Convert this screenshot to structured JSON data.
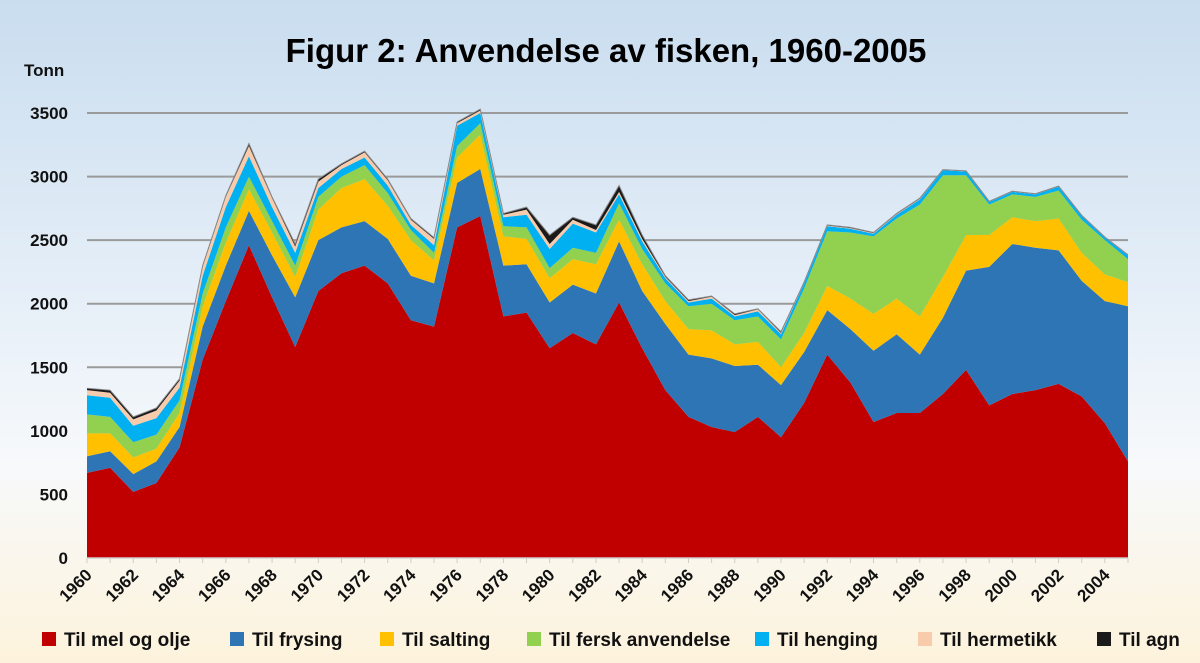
{
  "chart_data": {
    "type": "area",
    "stacked": true,
    "title": "Figur 2: Anvendelse av fisken, 1960-2005",
    "ylabel": "Tonn",
    "xlabel": "",
    "ylim": [
      0,
      3500
    ],
    "yticks": [
      0,
      500,
      1000,
      1500,
      2000,
      2500,
      3000,
      3500
    ],
    "xticks": [
      1960,
      1962,
      1964,
      1966,
      1968,
      1970,
      1972,
      1974,
      1976,
      1978,
      1980,
      1982,
      1984,
      1986,
      1988,
      1990,
      1992,
      1994,
      1996,
      1998,
      2000,
      2002,
      2004
    ],
    "grid": true,
    "legend_position": "bottom",
    "x": [
      1960,
      1961,
      1962,
      1963,
      1964,
      1965,
      1966,
      1967,
      1968,
      1969,
      1970,
      1971,
      1972,
      1973,
      1974,
      1975,
      1976,
      1977,
      1978,
      1979,
      1980,
      1981,
      1982,
      1983,
      1984,
      1985,
      1986,
      1987,
      1988,
      1989,
      1990,
      1991,
      1992,
      1993,
      1994,
      1995,
      1996,
      1997,
      1998,
      1999,
      2000,
      2001,
      2002,
      2003,
      2004,
      2005
    ],
    "series": [
      {
        "name": "Til mel og olje",
        "color": "#c00000",
        "values": [
          670,
          710,
          520,
          590,
          870,
          1560,
          2020,
          2460,
          2050,
          1660,
          2100,
          2240,
          2300,
          2160,
          1870,
          1820,
          2600,
          2690,
          1900,
          1930,
          1650,
          1770,
          1680,
          2010,
          1650,
          1320,
          1110,
          1030,
          990,
          1110,
          950,
          1220,
          1600,
          1380,
          1070,
          1140,
          1140,
          1290,
          1480,
          1200,
          1290,
          1320,
          1370,
          1270,
          1060,
          760
        ]
      },
      {
        "name": "Til frysing",
        "color": "#2e75b6",
        "values": [
          130,
          130,
          140,
          170,
          160,
          260,
          280,
          270,
          330,
          390,
          400,
          360,
          350,
          350,
          350,
          340,
          350,
          370,
          400,
          380,
          360,
          380,
          400,
          480,
          450,
          520,
          490,
          540,
          520,
          410,
          410,
          400,
          350,
          420,
          560,
          620,
          460,
          600,
          780,
          1090,
          1180,
          1120,
          1050,
          910,
          960,
          1220
        ]
      },
      {
        "name": "Til salting",
        "color": "#ffc000",
        "values": [
          180,
          140,
          130,
          100,
          110,
          160,
          180,
          170,
          180,
          160,
          240,
          310,
          330,
          260,
          280,
          180,
          200,
          270,
          230,
          200,
          190,
          200,
          230,
          170,
          210,
          180,
          200,
          220,
          170,
          180,
          140,
          150,
          190,
          240,
          290,
          280,
          300,
          320,
          280,
          250,
          210,
          210,
          250,
          220,
          210,
          190
        ]
      },
      {
        "name": "Til fersk anvendelse",
        "color": "#92d050",
        "values": [
          150,
          130,
          120,
          110,
          100,
          100,
          120,
          100,
          90,
          90,
          100,
          90,
          110,
          100,
          80,
          60,
          90,
          90,
          80,
          90,
          80,
          90,
          90,
          130,
          120,
          140,
          180,
          210,
          190,
          200,
          220,
          350,
          430,
          520,
          610,
          630,
          880,
          800,
          470,
          240,
          180,
          190,
          220,
          260,
          270,
          180
        ]
      },
      {
        "name": "Til henging",
        "color": "#00b0f0",
        "values": [
          150,
          150,
          130,
          130,
          100,
          140,
          160,
          160,
          110,
          100,
          70,
          60,
          60,
          60,
          40,
          60,
          160,
          80,
          70,
          100,
          150,
          190,
          160,
          70,
          60,
          40,
          30,
          40,
          30,
          40,
          40,
          40,
          40,
          30,
          20,
          30,
          40,
          40,
          30,
          20,
          20,
          20,
          30,
          30,
          20,
          30
        ]
      },
      {
        "name": "Til hermetikk",
        "color": "#f8cbad",
        "values": [
          40,
          40,
          50,
          60,
          55,
          70,
          80,
          80,
          70,
          50,
          50,
          30,
          40,
          40,
          40,
          50,
          20,
          20,
          20,
          40,
          40,
          30,
          20,
          20,
          20,
          10,
          10,
          15,
          10,
          15,
          10,
          5,
          5,
          5,
          5,
          5,
          5,
          2,
          2,
          2,
          2,
          2,
          2,
          2,
          2,
          2
        ]
      },
      {
        "name": "Til agn",
        "color": "#1a1a1a",
        "values": [
          15,
          20,
          20,
          20,
          15,
          10,
          10,
          20,
          10,
          20,
          20,
          10,
          10,
          10,
          10,
          10,
          10,
          10,
          10,
          20,
          70,
          20,
          40,
          50,
          30,
          10,
          10,
          5,
          10,
          5,
          10,
          5,
          5,
          5,
          5,
          5,
          5,
          3,
          3,
          3,
          3,
          3,
          3,
          3,
          3,
          3
        ]
      }
    ]
  }
}
